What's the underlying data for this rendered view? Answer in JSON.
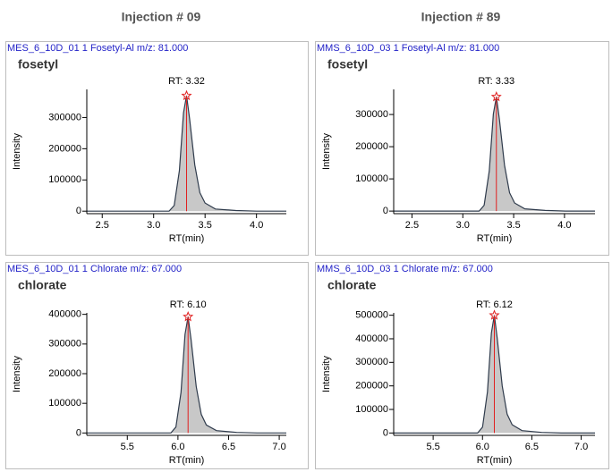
{
  "column_titles": [
    "Injection # 09",
    "Injection # 89"
  ],
  "chart_data": [
    {
      "type": "area",
      "title": "MES_6_10D_01  1  Fosetyl-Al  m/z: 81.000",
      "subtitle": "fosetyl",
      "annotation": "RT: 3.32",
      "xlabel": "RT(min)",
      "ylabel": "Intensity",
      "color": "#c8c8c8",
      "line_color": "#2f3b4c",
      "marker_color": "#e02020",
      "x": [
        2.35,
        3.15,
        3.2,
        3.25,
        3.29,
        3.32,
        3.35,
        3.4,
        3.45,
        3.5,
        3.6,
        3.8,
        4.0,
        4.29
      ],
      "values": [
        0,
        0,
        18000,
        130000,
        315000,
        370000,
        296000,
        148000,
        59000,
        26000,
        7000,
        2000,
        0,
        0
      ],
      "xlim": [
        2.35,
        4.29
      ],
      "ylim": [
        -8000,
        390000
      ],
      "xticks": [
        2.5,
        {
          "value": 3,
          "label": "3.0"
        },
        3.5,
        {
          "value": 4,
          "label": "4.0"
        }
      ],
      "yticks": [
        0,
        100000,
        200000,
        300000
      ]
    },
    {
      "type": "area",
      "title": "MMS_6_10D_03  1  Fosetyl-Al  m/z: 81.000",
      "subtitle": "fosetyl",
      "annotation": "RT: 3.33",
      "xlabel": "RT(min)",
      "ylabel": "Intensity",
      "color": "#c8c8c8",
      "line_color": "#2f3b4c",
      "marker_color": "#e02020",
      "x": [
        2.32,
        3.16,
        3.21,
        3.26,
        3.3,
        3.33,
        3.36,
        3.41,
        3.46,
        3.51,
        3.61,
        3.81,
        4.01,
        4.3
      ],
      "values": [
        0,
        0,
        18000,
        124000,
        302000,
        355000,
        284000,
        142000,
        57000,
        25000,
        7000,
        2000,
        0,
        0
      ],
      "xlim": [
        2.32,
        4.3
      ],
      "ylim": [
        -8000,
        378000
      ],
      "xticks": [
        2.5,
        {
          "value": 3,
          "label": "3.0"
        },
        3.5,
        {
          "value": 4,
          "label": "4.0"
        }
      ],
      "yticks": [
        0,
        100000,
        200000,
        300000
      ]
    },
    {
      "type": "area",
      "title": "MES_6_10D_01  1  Chlorate  m/z: 67.000",
      "subtitle": "chlorate",
      "annotation": "RT: 6.10",
      "xlabel": "RT(min)",
      "ylabel": "Intensity",
      "color": "#c8c8c8",
      "line_color": "#2f3b4c",
      "marker_color": "#e02020",
      "x": [
        5.1,
        5.93,
        5.98,
        6.03,
        6.07,
        6.1,
        6.13,
        6.18,
        6.23,
        6.28,
        6.38,
        6.58,
        6.78,
        7.07
      ],
      "values": [
        0,
        0,
        20000,
        137000,
        333000,
        392000,
        314000,
        157000,
        63000,
        27000,
        8000,
        2000,
        0,
        0
      ],
      "xlim": [
        5.1,
        7.07
      ],
      "ylim": [
        -8000,
        405000
      ],
      "xticks": [
        5.5,
        {
          "value": 6,
          "label": "6.0"
        },
        6.5,
        {
          "value": 7,
          "label": "7.0"
        }
      ],
      "yticks": [
        0,
        100000,
        200000,
        300000,
        400000
      ]
    },
    {
      "type": "area",
      "title": "MMS_6_10D_03  1  Chlorate  m/z: 67.000",
      "subtitle": "chlorate",
      "annotation": "RT: 6.12",
      "xlabel": "RT(min)",
      "ylabel": "Intensity",
      "color": "#c8c8c8",
      "line_color": "#2f3b4c",
      "marker_color": "#e02020",
      "x": [
        5.1,
        5.95,
        6.0,
        6.05,
        6.09,
        6.12,
        6.15,
        6.2,
        6.25,
        6.3,
        6.4,
        6.6,
        6.8,
        7.14
      ],
      "values": [
        0,
        0,
        25000,
        175000,
        425000,
        500000,
        400000,
        200000,
        80000,
        35000,
        10000,
        2500,
        0,
        0
      ],
      "xlim": [
        5.1,
        7.14
      ],
      "ylim": [
        -10000,
        510000
      ],
      "xticks": [
        5.5,
        {
          "value": 6,
          "label": "6.0"
        },
        6.5,
        {
          "value": 7,
          "label": "7.0"
        }
      ],
      "yticks": [
        0,
        100000,
        200000,
        300000,
        400000,
        500000
      ]
    }
  ]
}
